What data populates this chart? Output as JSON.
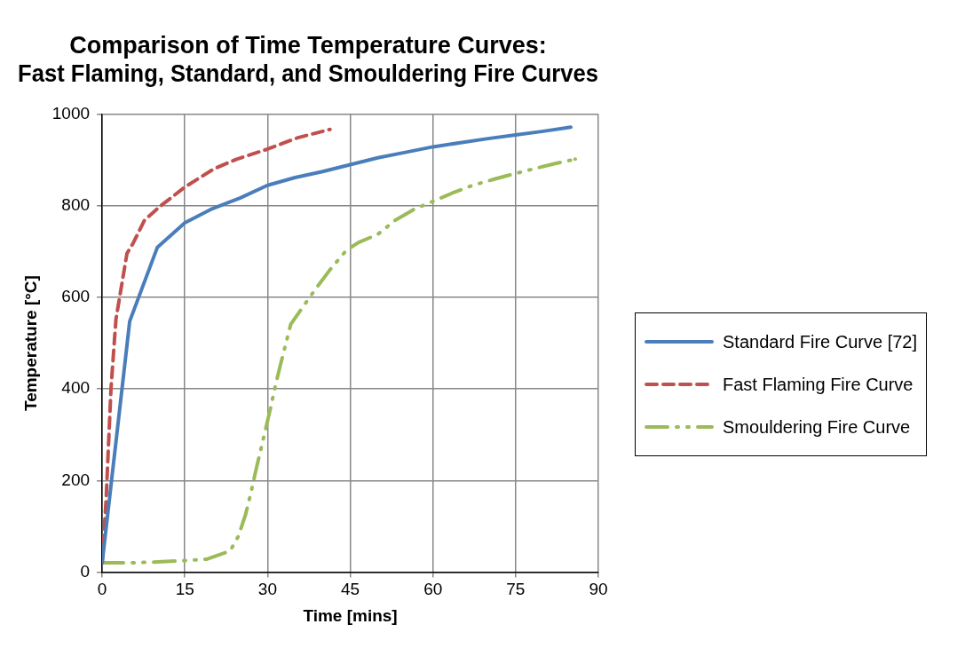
{
  "chart_data": {
    "type": "line",
    "title": "Comparison of Time Temperature Curves:\nFast Flaming, Standard, and Smouldering Fire Curves",
    "xlabel": "Time [mins]",
    "ylabel": "Temperature [°C]",
    "xlim": [
      0,
      90
    ],
    "xticks": [
      0,
      15,
      30,
      45,
      60,
      75,
      90
    ],
    "ylim": [
      0,
      1000
    ],
    "yticks": [
      0,
      200,
      400,
      600,
      800,
      1000
    ],
    "grid": true,
    "legend": "right",
    "marker": "none",
    "series": [
      {
        "name": "Standard Fire Curve [72]",
        "color": "#4a7ebb",
        "line_style": "solid",
        "x": [
          0,
          5,
          10,
          15,
          20,
          25,
          30,
          35,
          40,
          45,
          50,
          55,
          60,
          65,
          70,
          75,
          80,
          85
        ],
        "values": [
          20,
          548,
          709,
          763,
          794,
          817,
          845,
          862,
          875,
          890,
          905,
          917,
          929,
          938,
          947,
          955,
          963,
          972
        ]
      },
      {
        "name": "Fast Flaming Fire Curve",
        "color": "#c0504d",
        "line_style": "dashed",
        "x": [
          0,
          0.7,
          1.6,
          2.5,
          4.5,
          5.6,
          7.7,
          10.4,
          15,
          20.3,
          24.4,
          30,
          35.5,
          41.3
        ],
        "values": [
          20,
          154,
          400,
          552,
          696,
          718,
          769,
          798,
          841,
          881,
          902,
          924,
          949,
          967
        ]
      },
      {
        "name": "Smouldering Fire Curve",
        "color": "#9bbb59",
        "line_style": "dashdot",
        "x": [
          0,
          5,
          10,
          15,
          19,
          23.2,
          24.7,
          26,
          27,
          27.9,
          29.6,
          30.5,
          31.4,
          32.3,
          34.2,
          36.4,
          38.8,
          41.3,
          44.3,
          46.5,
          50,
          53.2,
          56.5,
          63.5,
          67,
          71,
          75,
          82,
          85.8
        ],
        "values": [
          20,
          20,
          22,
          25,
          28,
          46,
          78,
          125,
          174,
          223,
          310,
          356,
          406,
          451,
          541,
          579,
          620,
          660,
          703,
          720,
          738,
          769,
          792,
          828,
          844,
          858,
          871,
          892,
          902
        ]
      }
    ]
  }
}
